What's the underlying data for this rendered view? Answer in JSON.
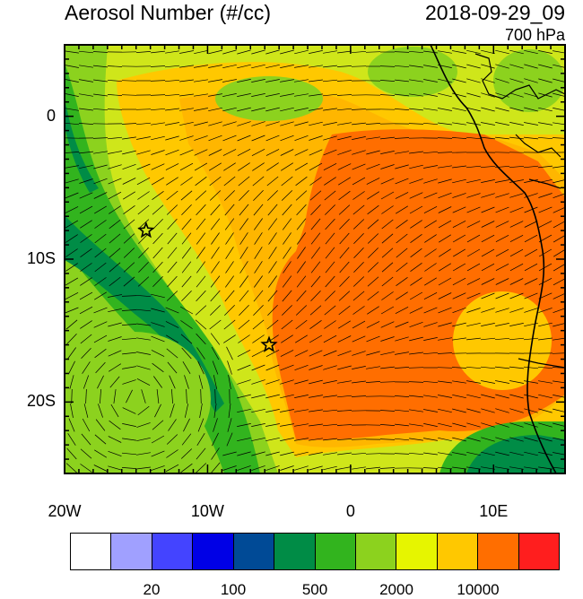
{
  "title": "Aerosol Number (#/cc)",
  "datetime": "2018-09-29_09",
  "level": "700 hPa",
  "axes": {
    "lon_ticks": [
      {
        "value": -20,
        "label": "20W"
      },
      {
        "value": -10,
        "label": "10W"
      },
      {
        "value": 0,
        "label": "0"
      },
      {
        "value": 10,
        "label": "10E"
      }
    ],
    "lat_ticks": [
      {
        "value": 0,
        "label": "0"
      },
      {
        "value": -10,
        "label": "10S"
      },
      {
        "value": -20,
        "label": "20S"
      }
    ],
    "lon_range": [
      -20,
      15
    ],
    "lat_range": [
      -25,
      5
    ]
  },
  "markers": [
    {
      "name": "star",
      "lon": -14.3,
      "lat": -8.0
    },
    {
      "name": "star",
      "lon": -5.7,
      "lat": -16.0
    }
  ],
  "colorbar": {
    "colors": [
      "#ffffff",
      "#a0a0ff",
      "#4444ff",
      "#0000e6",
      "#004a96",
      "#008c46",
      "#32b41e",
      "#8cd21e",
      "#e6f500",
      "#ffc800",
      "#ff6e00",
      "#ff1e1e"
    ],
    "labels": [
      {
        "text": "20",
        "after_box": 2
      },
      {
        "text": "100",
        "after_box": 4
      },
      {
        "text": "500",
        "after_box": 6
      },
      {
        "text": "2000",
        "after_box": 8
      },
      {
        "text": "10000",
        "after_box": 10
      }
    ]
  }
}
